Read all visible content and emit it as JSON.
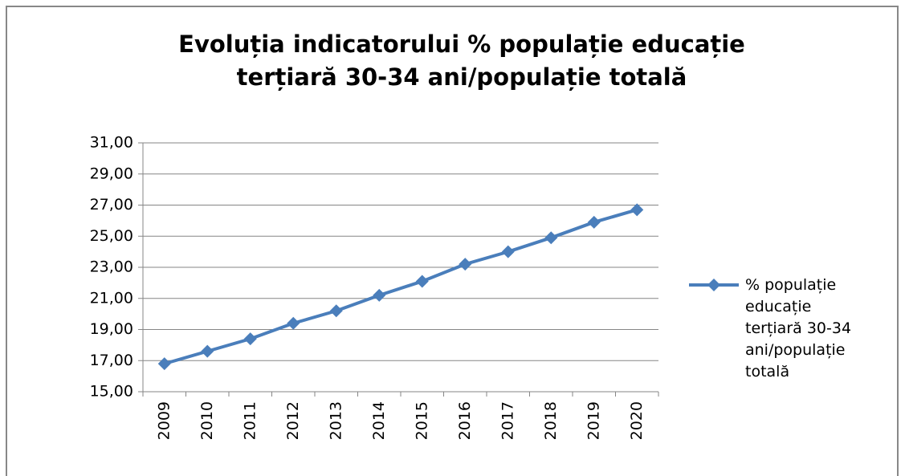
{
  "chart_data": {
    "type": "line",
    "title": [
      "Evoluția indicatorului % populație educație",
      "terțiară 30-34 ani/populație totală"
    ],
    "categories": [
      "2009",
      "2010",
      "2011",
      "2012",
      "2013",
      "2014",
      "2015",
      "2016",
      "2017",
      "2018",
      "2019",
      "2020"
    ],
    "series": [
      {
        "name": "% populație educație terțiară 30-34 ani/populație totală",
        "color": "#4a7ebb",
        "values": [
          16.8,
          17.6,
          18.4,
          19.4,
          20.2,
          21.2,
          22.1,
          23.2,
          24.0,
          24.9,
          25.9,
          26.7
        ]
      }
    ],
    "ylim": [
      15,
      31
    ],
    "yticks": [
      {
        "value": 15,
        "label": "15,00"
      },
      {
        "value": 17,
        "label": "17,00"
      },
      {
        "value": 19,
        "label": "19,00"
      },
      {
        "value": 21,
        "label": "21,00"
      },
      {
        "value": 23,
        "label": "23,00"
      },
      {
        "value": 25,
        "label": "25,00"
      },
      {
        "value": 27,
        "label": "27,00"
      },
      {
        "value": 29,
        "label": "29,00"
      },
      {
        "value": 31,
        "label": "31,00"
      }
    ],
    "grid": true,
    "legend": "right"
  }
}
